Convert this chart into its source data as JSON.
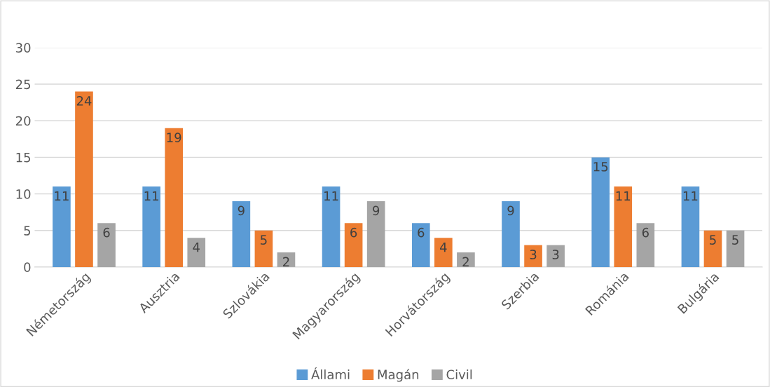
{
  "chart_data": {
    "type": "bar",
    "categories": [
      "Németország",
      "Ausztria",
      "Szlovákia",
      "Magyarország",
      "Horvátország",
      "Szerbia",
      "Románia",
      "Bulgária"
    ],
    "series": [
      {
        "name": "Állami",
        "color": "#5b9bd5",
        "values": [
          11,
          11,
          9,
          11,
          6,
          9,
          15,
          11
        ]
      },
      {
        "name": "Magán",
        "color": "#ed7d31",
        "values": [
          24,
          19,
          5,
          6,
          4,
          3,
          11,
          5
        ]
      },
      {
        "name": "Civil",
        "color": "#a5a5a5",
        "values": [
          6,
          4,
          2,
          9,
          2,
          3,
          6,
          5
        ]
      }
    ],
    "ylim": [
      0,
      30
    ],
    "yticks": [
      0,
      5,
      10,
      15,
      20,
      25,
      30
    ],
    "grid": "y",
    "legend": "bottom",
    "data_labels": true
  }
}
